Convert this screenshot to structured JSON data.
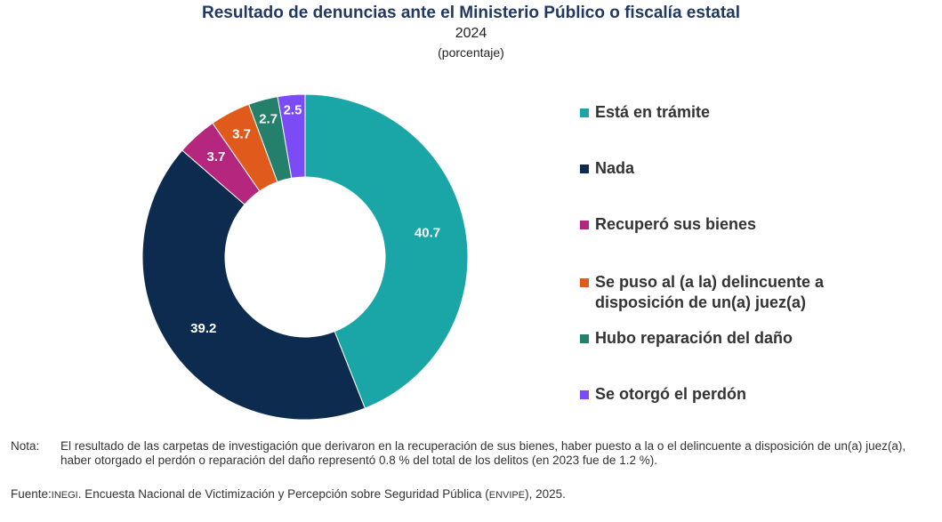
{
  "chart_data": {
    "type": "pie",
    "title": "Resultado de denuncias ante el Ministerio Público o fiscalía estatal",
    "subtitle": "2024",
    "unit": "(porcentaje)",
    "categories": [
      "Está en trámite",
      "Nada",
      "Recuperó sus bienes",
      "Se puso al (a la) delincuente a disposición de un(a) juez(a)",
      "Hubo reparación del daño",
      "Se otorgó el perdón"
    ],
    "values": [
      40.7,
      39.2,
      3.7,
      3.7,
      2.7,
      2.5
    ],
    "value_labels": [
      "40.7",
      "39.2",
      "3.7",
      "3.7",
      "2.7",
      "2.5"
    ],
    "colors": [
      "#1aa6a6",
      "#0d2b4e",
      "#b5267e",
      "#e05a1c",
      "#24806a",
      "#7b4cf5"
    ],
    "donut": true,
    "legend_position": "right"
  },
  "legend": {
    "items": [
      "Está en trámite",
      "Nada",
      "Recuperó sus bienes",
      "Se puso al (a la) delincuente a disposición de un(a) juez(a)",
      "Hubo reparación del daño",
      "Se otorgó el perdón"
    ]
  },
  "footer": {
    "note_label": "Nota:",
    "note_text": "El resultado de las carpetas de investigación que derivaron en la recuperación de sus bienes, haber puesto a la o el delincuente a disposición de un(a) juez(a), haber otorgado el perdón o reparación del daño representó 0.8 % del total de los delitos (en 2023 fue de 1.2 %).",
    "source_label": "Fuente:",
    "source_org": "INEGI",
    "source_text_1": ". Encuesta Nacional de Victimización y Percepción sobre Seguridad Pública (",
    "source_acronym": "ENVIPE",
    "source_text_2": "), 2025."
  }
}
